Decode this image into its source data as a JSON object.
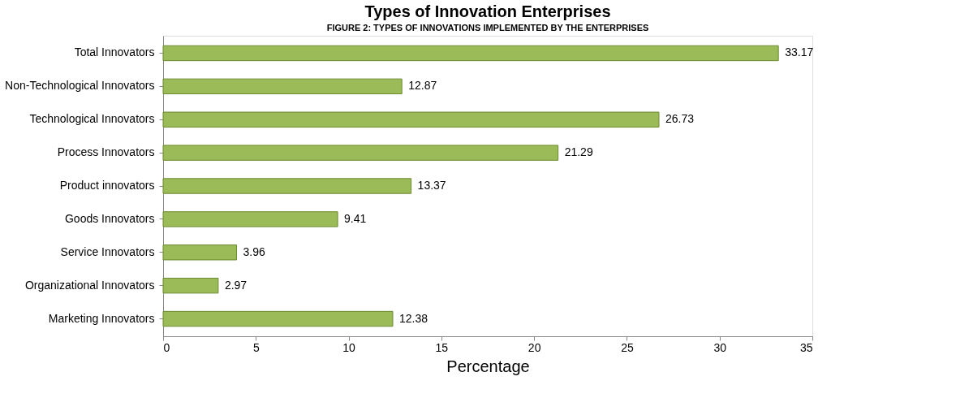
{
  "chart_data": {
    "type": "bar",
    "orientation": "horizontal",
    "title": "Types of Innovation Enterprises",
    "annotations": [
      "FIGURE 2: TYPES OF INNOVATIONS IMPLEMENTED BY THE ENTERPRISES"
    ],
    "xlabel": "Percentage",
    "categories": [
      "Total Innovators",
      "Non-Technological Innovators",
      "Technological Innovators",
      "Process Innovators",
      "Product innovators",
      "Goods Innovators",
      "Service Innovators",
      "Organizational Innovators",
      "Marketing Innovators"
    ],
    "values": [
      33.17,
      12.87,
      26.73,
      21.29,
      13.37,
      9.41,
      3.96,
      2.97,
      12.38
    ],
    "color": "#9bbb59",
    "xlim": [
      0,
      35
    ],
    "xticks": [
      0,
      5,
      10,
      15,
      20,
      25,
      30,
      35
    ],
    "data_labels": true,
    "grid": false
  }
}
